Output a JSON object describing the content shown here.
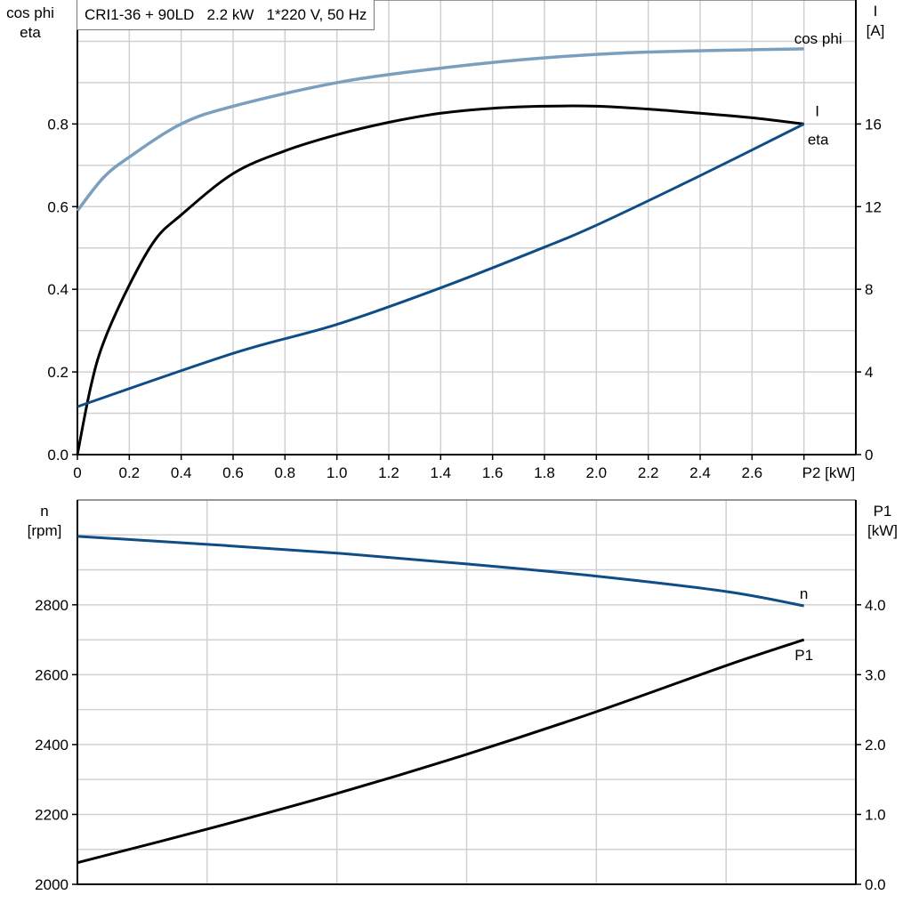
{
  "title": "CRI1-36 + 90LD   2.2 kW   1*220 V, 50 Hz",
  "colors": {
    "cos_phi": "#7b9fbf",
    "eta": "#000000",
    "I": "#0f4d86",
    "n": "#0f4d86",
    "P1": "#000000",
    "grid": "#d0d0d0"
  },
  "chart_data": [
    {
      "type": "line",
      "xlabel": "P2 [kW]",
      "x_ticks": [
        "0",
        "0.2",
        "0.4",
        "0.6",
        "0.8",
        "1.0",
        "1.2",
        "1.4",
        "1.6",
        "1.8",
        "2.0",
        "2.2",
        "2.4",
        "2.6"
      ],
      "xlim": [
        0,
        3.0
      ],
      "ylabel_left": [
        "cos phi",
        "eta"
      ],
      "ylim_left": [
        0,
        1.1
      ],
      "y_ticks_left": [
        "0.0",
        "0.2",
        "0.4",
        "0.6",
        "0.8"
      ],
      "ylabel_right": [
        "I",
        "[A]"
      ],
      "ylim_right": [
        0,
        22
      ],
      "y_ticks_right": [
        "0",
        "4",
        "8",
        "12",
        "16"
      ],
      "grid": true,
      "series": [
        {
          "name": "cos phi",
          "axis": "left",
          "x": [
            0,
            0.1,
            0.2,
            0.4,
            0.6,
            1.0,
            1.4,
            1.8,
            2.2,
            2.8
          ],
          "y": [
            0.59,
            0.67,
            0.72,
            0.8,
            0.843,
            0.9,
            0.935,
            0.96,
            0.974,
            0.982
          ]
        },
        {
          "name": "eta",
          "axis": "left",
          "x": [
            0,
            0.05,
            0.1,
            0.2,
            0.3,
            0.4,
            0.6,
            0.8,
            1.0,
            1.2,
            1.4,
            1.6,
            1.8,
            2.0,
            2.2,
            2.4,
            2.6,
            2.8
          ],
          "y": [
            0,
            0.16,
            0.27,
            0.41,
            0.52,
            0.58,
            0.68,
            0.735,
            0.774,
            0.804,
            0.826,
            0.838,
            0.843,
            0.843,
            0.836,
            0.826,
            0.815,
            0.8
          ]
        },
        {
          "name": "I",
          "axis": "right",
          "x": [
            0,
            0.6,
            1.0,
            1.4,
            1.8,
            2.0,
            2.4,
            2.8
          ],
          "y": [
            2.32,
            4.9,
            6.3,
            8.07,
            10.04,
            11.1,
            13.5,
            16.0
          ]
        }
      ]
    },
    {
      "type": "line",
      "xlim": [
        0,
        3.0
      ],
      "ylabel_left": [
        "n",
        "[rpm]"
      ],
      "ylim_left": [
        2000,
        3100
      ],
      "y_ticks_left": [
        "2000",
        "2200",
        "2400",
        "2600",
        "2800"
      ],
      "ylabel_right": [
        "P1",
        "[kW]"
      ],
      "ylim_right": [
        0,
        5.5
      ],
      "y_ticks_right": [
        "0.0",
        "1.0",
        "2.0",
        "3.0",
        "4.0"
      ],
      "grid": true,
      "series": [
        {
          "name": "n",
          "axis": "left",
          "x": [
            0,
            0.5,
            1.0,
            1.5,
            2.0,
            2.5,
            2.8
          ],
          "y": [
            2996,
            2973,
            2948,
            2917,
            2882,
            2838,
            2797
          ]
        },
        {
          "name": "P1",
          "axis": "right",
          "x": [
            0,
            0.5,
            1.0,
            1.5,
            2.0,
            2.5,
            2.8
          ],
          "y": [
            0.31,
            0.79,
            1.3,
            1.86,
            2.47,
            3.13,
            3.5
          ]
        }
      ]
    }
  ]
}
